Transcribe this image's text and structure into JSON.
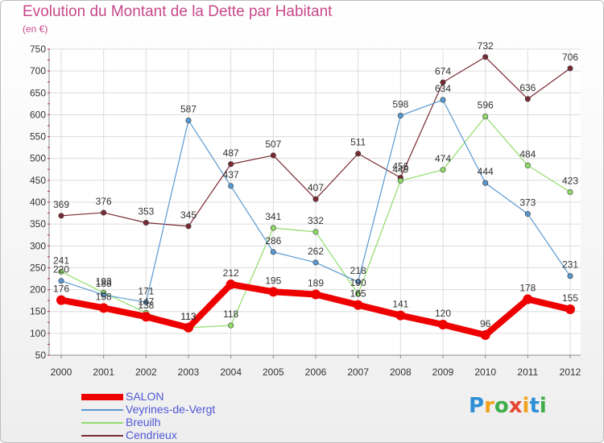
{
  "title": "Evolution du Montant de la Dette par Habitant",
  "subtitle": "(en €)",
  "logo": {
    "text": "Proxiti",
    "colors": [
      "#2e8fd6",
      "#f3a21b",
      "#3fae49",
      "#e8462e",
      "#f3a21b",
      "#2e8fd6",
      "#3fae49"
    ]
  },
  "chart_data": {
    "type": "line",
    "x": [
      "2000",
      "2001",
      "2002",
      "2003",
      "2004",
      "2005",
      "2006",
      "2007",
      "2008",
      "2009",
      "2010",
      "2011",
      "2012"
    ],
    "ylim": [
      50,
      750
    ],
    "yticks": [
      50,
      100,
      150,
      200,
      250,
      300,
      350,
      400,
      450,
      500,
      550,
      600,
      650,
      700,
      750
    ],
    "grid": true,
    "legend_position": "bottom-left",
    "series": [
      {
        "name": "SALON",
        "color": "#ee0000",
        "values": [
          176,
          158,
          138,
          113,
          212,
          195,
          189,
          165,
          141,
          120,
          96,
          178,
          155
        ]
      },
      {
        "name": "Veyrines-de-Vergt",
        "color": "#5a9ad2",
        "values": [
          220,
          188,
          171,
          587,
          437,
          286,
          262,
          218,
          598,
          634,
          444,
          373,
          231
        ]
      },
      {
        "name": "Breuilh",
        "color": "#90dc6a",
        "values": [
          241,
          193,
          147,
          113,
          118,
          341,
          332,
          190,
          449,
          474,
          596,
          484,
          423
        ]
      },
      {
        "name": "Cendrieux",
        "color": "#7a2a33",
        "values": [
          369,
          376,
          353,
          345,
          487,
          507,
          407,
          511,
          456,
          674,
          732,
          636,
          706
        ]
      }
    ]
  }
}
